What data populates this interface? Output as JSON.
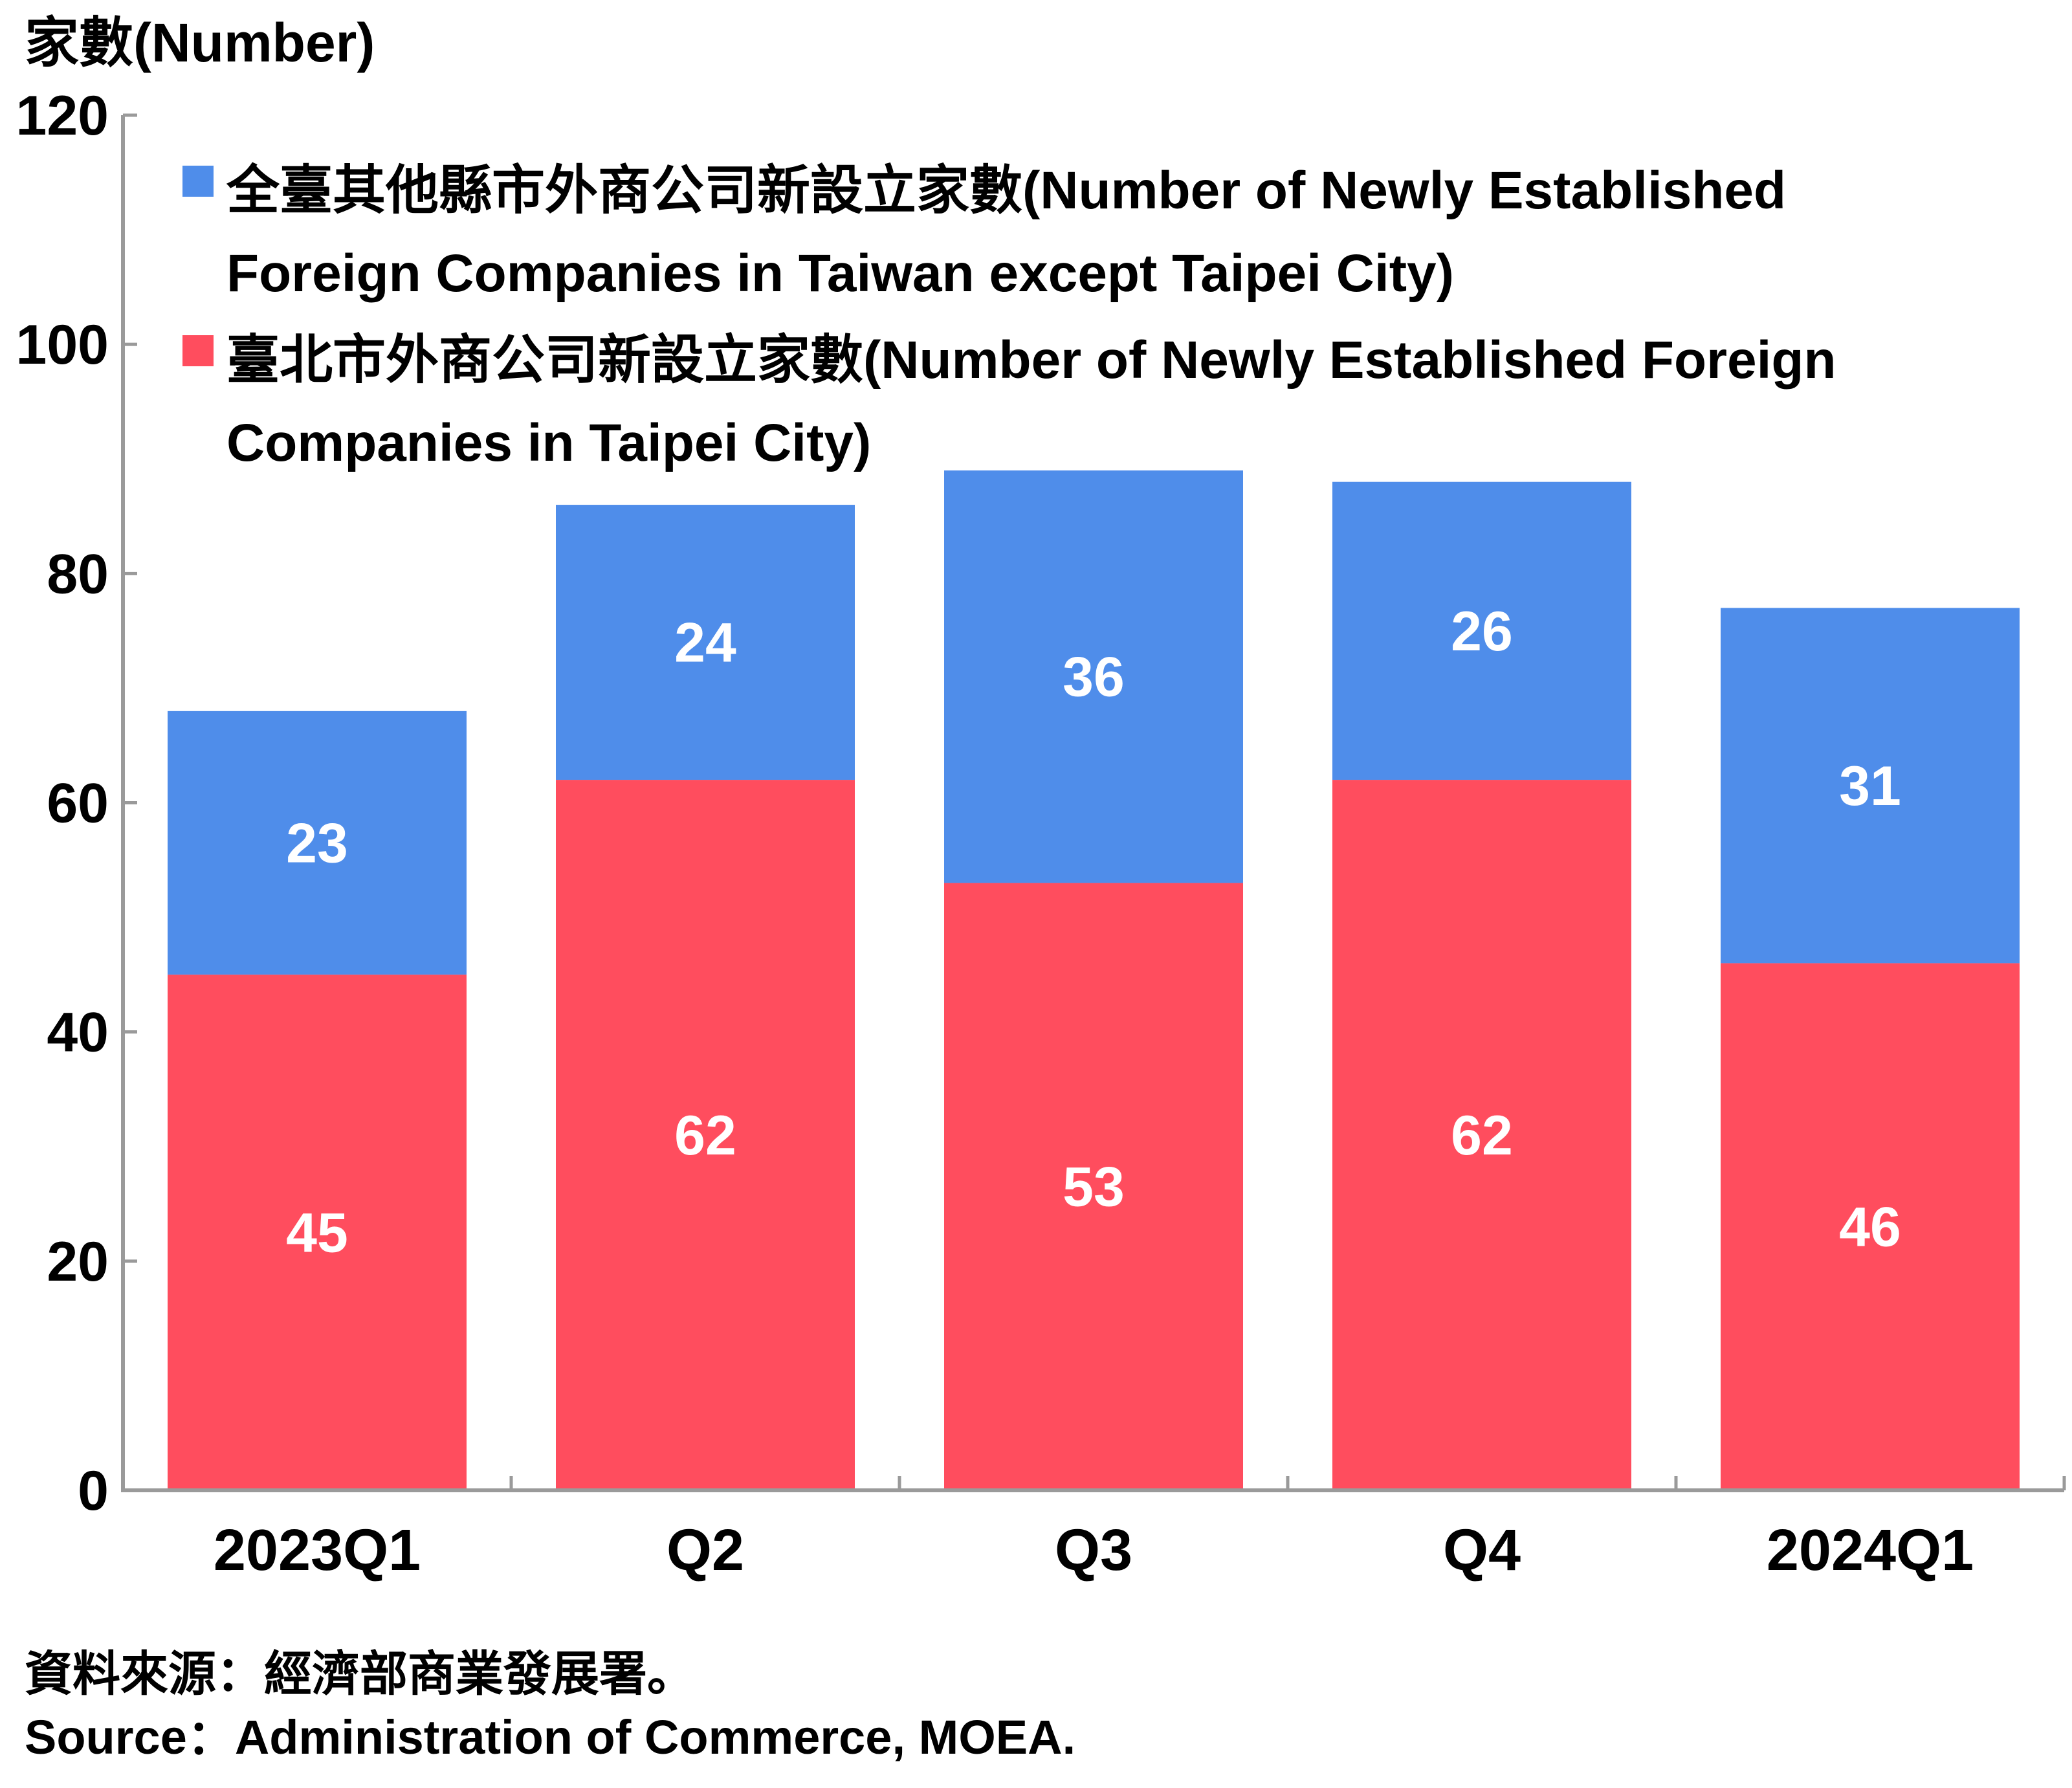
{
  "chart_data": {
    "type": "bar",
    "stacked": true,
    "ylabel": "家數(Number)",
    "ylim": [
      0,
      120
    ],
    "yticks": [
      0,
      20,
      40,
      60,
      80,
      100,
      120
    ],
    "categories": [
      "2023Q1",
      "Q2",
      "Q3",
      "Q4",
      "2024Q1"
    ],
    "series": [
      {
        "name": "臺北市外商公司新設立家數(Number of Newly Established Foreign Companies in Taipei City)",
        "legend_lines": [
          "臺北市外商公司新設立家數(Number of Newly Established Foreign",
          "Companies in Taipei City)"
        ],
        "color": "#ff4d5e",
        "values": [
          45,
          62,
          53,
          62,
          46
        ]
      },
      {
        "name": "全臺其他縣市外商公司新設立家數(Number of Newly Established Foreign Companies in Taiwan except Taipei City)",
        "legend_lines": [
          "全臺其他縣市外商公司新設立家數(Number of Newly Established",
          "Foreign Companies in Taiwan except Taipei City)"
        ],
        "color": "#4f8dea",
        "values": [
          23,
          24,
          36,
          26,
          31
        ]
      }
    ],
    "legend_position": "top-left",
    "grid": false
  },
  "source": {
    "zh": "資料來源：經濟部商業發展署。",
    "en": "Source：Administration of Commerce, MOEA."
  }
}
